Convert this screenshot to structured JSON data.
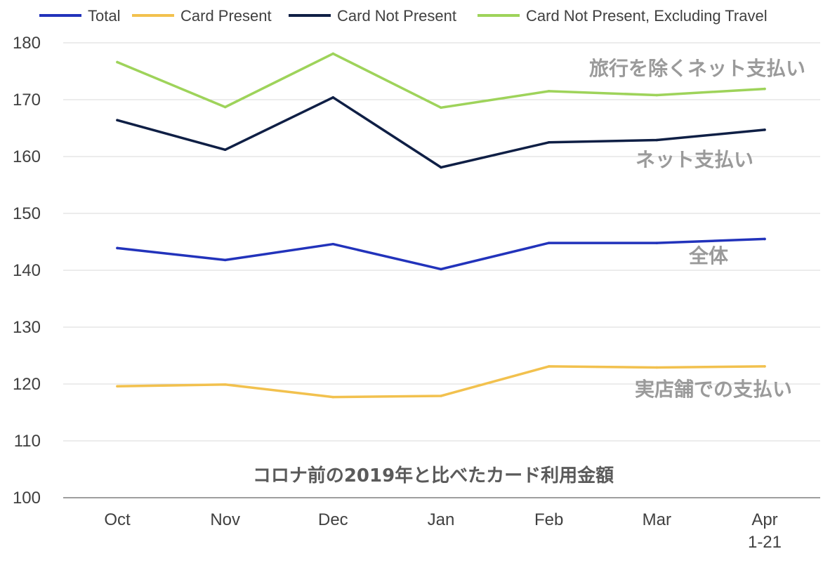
{
  "chart_data": {
    "type": "line",
    "title": "コロナ前の2019年と比べたカード利用金額",
    "categories": [
      "Oct",
      "Nov",
      "Dec",
      "Jan",
      "Feb",
      "Mar",
      "Apr 1-21"
    ],
    "category_lines": [
      [
        "Oct"
      ],
      [
        "Nov"
      ],
      [
        "Dec"
      ],
      [
        "Jan"
      ],
      [
        "Feb"
      ],
      [
        "Mar"
      ],
      [
        "Apr",
        "1-21"
      ]
    ],
    "ylim": [
      100,
      180
    ],
    "yticks": [
      100,
      110,
      120,
      130,
      140,
      150,
      160,
      170,
      180
    ],
    "grid": true,
    "legend_position": "top",
    "series": [
      {
        "name": "Total",
        "color": "#2233bb",
        "values": [
          143.9,
          141.8,
          144.6,
          140.2,
          144.8,
          144.8,
          145.5
        ],
        "annotation": "全体"
      },
      {
        "name": "Card Present",
        "color": "#f2c14e",
        "values": [
          119.6,
          119.9,
          117.7,
          117.9,
          123.1,
          122.9,
          123.1
        ],
        "annotation": "実店舗での支払い"
      },
      {
        "name": "Card Not Present",
        "color": "#0f1f45",
        "values": [
          166.4,
          161.2,
          170.4,
          158.1,
          162.5,
          162.9,
          164.7
        ],
        "annotation": "ネット支払い"
      },
      {
        "name": "Card Not Present, Excluding Travel",
        "color": "#9ed35a",
        "values": [
          176.6,
          168.7,
          178.1,
          168.6,
          171.5,
          170.8,
          171.9
        ],
        "annotation": "旅行を除くネット支払い"
      }
    ]
  }
}
